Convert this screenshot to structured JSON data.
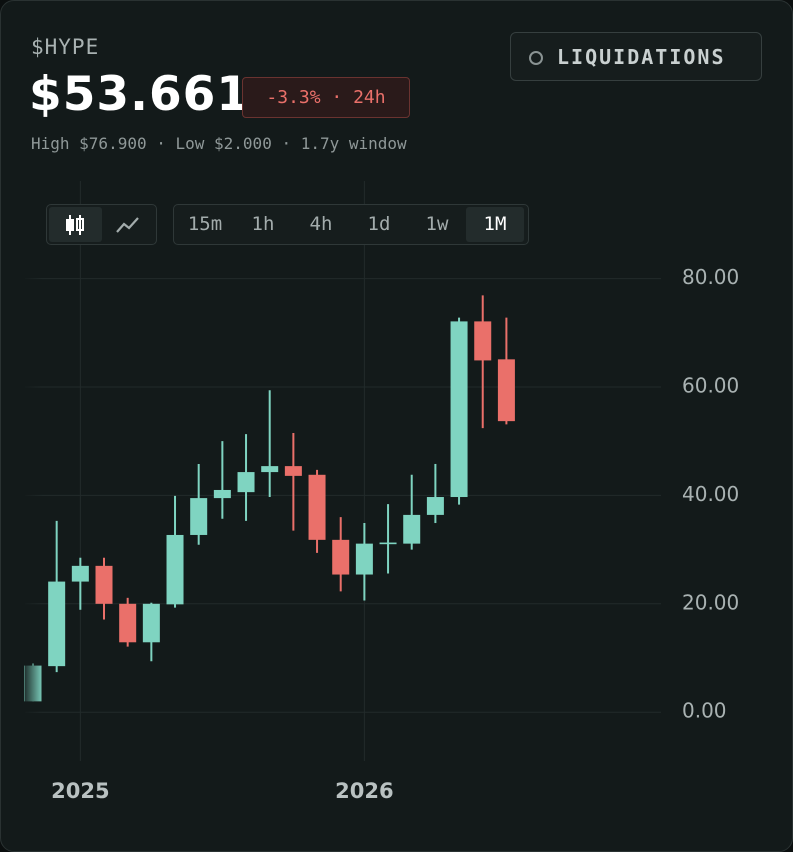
{
  "header": {
    "symbol": "$HYPE",
    "price": "$53.661",
    "change": "-3.3% · 24h",
    "stats": "High $76.900 · Low $2.000 · 1.7y window"
  },
  "liquidations_button": "LIQUIDATIONS",
  "intervals": [
    "15m",
    "1h",
    "4h",
    "1d",
    "1w",
    "1M"
  ],
  "active_interval": "1M",
  "chart_data": {
    "type": "candlestick",
    "categories": [
      null,
      null,
      "2025",
      null,
      null,
      null,
      null,
      null,
      null,
      null,
      null,
      null,
      null,
      null,
      "2026",
      null,
      null,
      null,
      null,
      null,
      null
    ],
    "open": [
      2.0,
      8.5,
      24.1,
      27.0,
      20.0,
      12.9,
      19.9,
      32.7,
      39.5,
      40.6,
      44.3,
      45.4,
      43.8,
      31.8,
      25.4,
      31.0,
      31.1,
      36.4,
      39.7,
      72.1,
      65.1
    ],
    "high": [
      9.0,
      35.3,
      28.5,
      28.5,
      21.1,
      20.2,
      39.9,
      45.8,
      50.0,
      51.3,
      59.4,
      51.5,
      44.7,
      36.0,
      34.9,
      38.4,
      43.8,
      45.8,
      72.8,
      76.9,
      72.8
    ],
    "low": [
      2.0,
      7.4,
      18.9,
      17.1,
      12.1,
      9.4,
      19.3,
      30.9,
      35.7,
      35.3,
      39.7,
      33.5,
      29.4,
      22.3,
      20.6,
      25.6,
      30.0,
      34.9,
      38.3,
      52.4,
      53.1
    ],
    "close": [
      8.6,
      24.1,
      27.0,
      20.0,
      12.9,
      20.0,
      32.7,
      39.5,
      41.0,
      44.3,
      45.4,
      43.6,
      31.8,
      25.4,
      31.1,
      31.3,
      36.4,
      39.7,
      72.1,
      64.9,
      53.7
    ],
    "up_color": "#7fd4c1",
    "down_color": "#ea706a",
    "ylim": [
      -9,
      98
    ],
    "yticks": [
      {
        "value": 0,
        "label": "0.00"
      },
      {
        "value": 20,
        "label": "20.00"
      },
      {
        "value": 40,
        "label": "40.00"
      },
      {
        "value": 60,
        "label": "60.00"
      },
      {
        "value": 80,
        "label": "80.00"
      }
    ],
    "grid": true
  }
}
